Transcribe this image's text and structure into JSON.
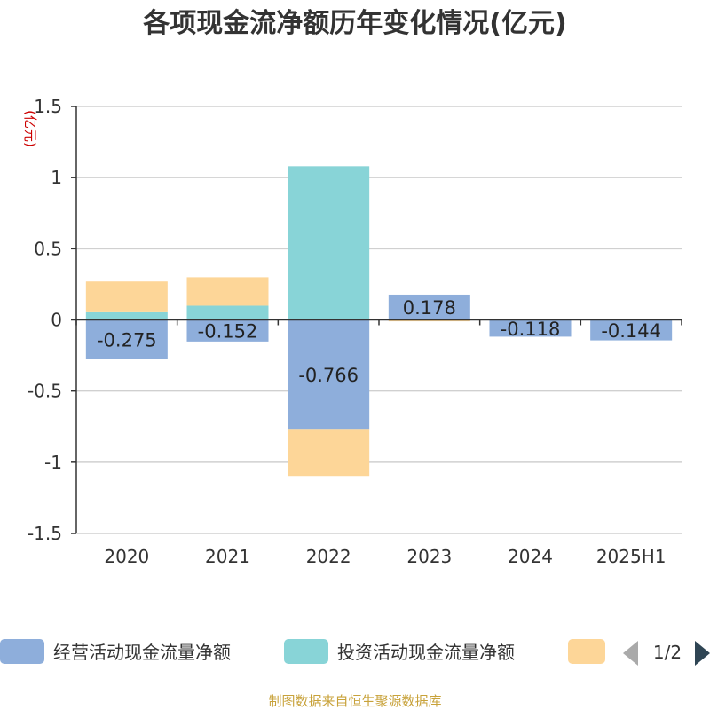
{
  "chart_data": {
    "type": "bar",
    "stacked": true,
    "title": "各项现金流净额历年变化情况(亿元)",
    "unit_label": "(亿元)",
    "categories": [
      "2020",
      "2021",
      "2022",
      "2023",
      "2024",
      "2025H1"
    ],
    "series": [
      {
        "name": "经营活动现金流量净额",
        "color": "#8eaedb",
        "values": [
          -0.275,
          -0.152,
          -0.766,
          0.178,
          -0.118,
          -0.144
        ],
        "labels": [
          "-0.275",
          "-0.152",
          "-0.766",
          "0.178",
          "-0.118",
          "-0.144"
        ]
      },
      {
        "name": "投资活动现金流量净额",
        "color": "#88d4d7",
        "values": [
          0.06,
          0.1,
          1.08,
          0.0,
          0.0,
          0.0
        ]
      },
      {
        "name": "",
        "color": "#fdd698",
        "values": [
          0.21,
          0.2,
          -0.33,
          -0.01,
          0.0,
          0.0
        ]
      }
    ],
    "ylim": [
      -1.5,
      1.5
    ],
    "yticks": [
      -1.5,
      -1,
      -0.5,
      0,
      0.5,
      1,
      1.5
    ],
    "ytick_labels": [
      "-1.5",
      "-1",
      "-0.5",
      "0",
      "0.5",
      "1",
      "1.5"
    ],
    "grid": true,
    "legend_position": "bottom"
  },
  "legend": {
    "page_indicator": "1/2"
  },
  "source_text": "制图数据来自恒生聚源数据库"
}
